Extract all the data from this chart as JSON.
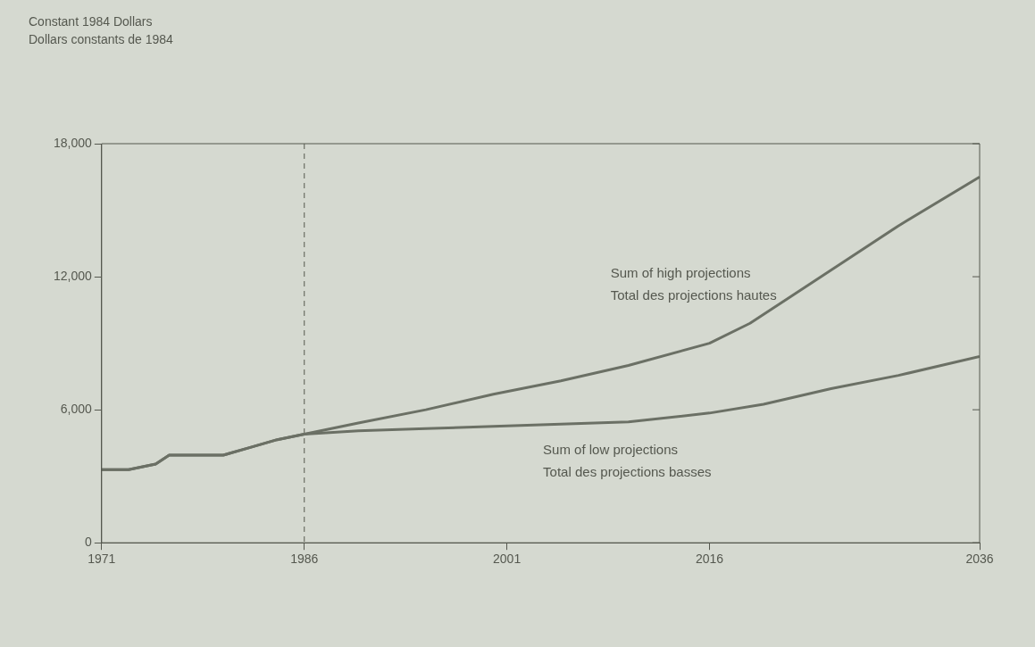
{
  "chart_data": {
    "type": "line",
    "annotations": [
      "Constant 1984 Dollars\nDollars constants de 1984"
    ],
    "xlim": [
      1971,
      2036
    ],
    "xticks": [
      1971,
      1986,
      2001,
      2016,
      2036
    ],
    "ylim": [
      0,
      18000
    ],
    "yticks": [
      {
        "value": 0,
        "label": "0"
      },
      {
        "value": 6000,
        "label": "6,000"
      },
      {
        "value": 12000,
        "label": "12,000"
      },
      {
        "value": 18000,
        "label": "18,000"
      }
    ],
    "series": [
      {
        "name": "Sum of high projections\nTotal des projections hautes",
        "color": "#6b7065",
        "x": [
          1971,
          1973,
          1975,
          1976,
          1980,
          1982,
          1984,
          1986,
          1990,
          1995,
          2000,
          2005,
          2010,
          2016,
          2019,
          2022,
          2026,
          2030,
          2036
        ],
        "values": [
          3300,
          3300,
          3550,
          3950,
          3950,
          4300,
          4650,
          4900,
          5400,
          6000,
          6700,
          7300,
          8000,
          9000,
          9900,
          11100,
          12700,
          14300,
          16500
        ]
      },
      {
        "name": "Sum of low projections\nTotal des projections basses",
        "color": "#6b7065",
        "x": [
          1971,
          1973,
          1975,
          1976,
          1980,
          1982,
          1984,
          1986,
          1990,
          1995,
          2000,
          2005,
          2010,
          2016,
          2020,
          2025,
          2030,
          2036
        ],
        "values": [
          3300,
          3300,
          3550,
          3950,
          3950,
          4300,
          4650,
          4900,
          5050,
          5150,
          5250,
          5350,
          5450,
          5850,
          6250,
          6950,
          7550,
          8400
        ]
      }
    ],
    "ref_lines": [
      {
        "axis": "x",
        "value": 1986,
        "line_style": "dashed",
        "color": "#6b7065"
      }
    ],
    "grid": false,
    "legend": false,
    "marker": "none",
    "line_style": "solid"
  }
}
